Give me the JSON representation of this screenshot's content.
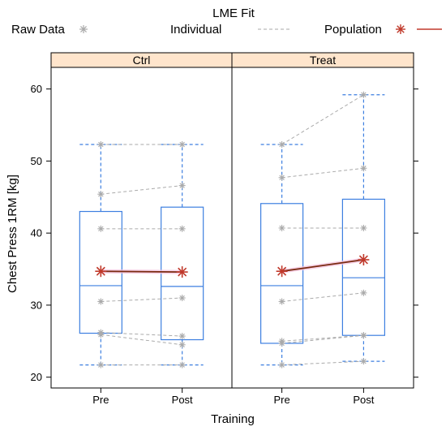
{
  "chart_data": {
    "type": "boxplot",
    "legend": {
      "title": "LME Fit",
      "placement": "top",
      "entries": [
        {
          "label": "Raw Data",
          "marker": "asterisk",
          "color": "#aaaaaa"
        },
        {
          "label": "Individual",
          "line": "dashed",
          "color": "#aaaaaa"
        },
        {
          "label": "Population",
          "marker": "asterisk",
          "line": "solid",
          "color": "#c0392b"
        }
      ]
    },
    "xlabel": "Training",
    "ylabel": "Chest Press 1RM [kg]",
    "categories": [
      "Pre",
      "Post"
    ],
    "ylim": [
      18.5,
      63
    ],
    "yticks": [
      20,
      30,
      40,
      50,
      60
    ],
    "colors": {
      "box": "#3d7fe0",
      "raw": "#aaaaaa",
      "individual": "#aaaaaa",
      "population": "#c0392b",
      "strip": "#ffe5cc"
    },
    "panels": [
      {
        "name": "Ctrl",
        "boxes": [
          {
            "category": "Pre",
            "whisker_low": 21.7,
            "q1": 26.1,
            "median": 32.7,
            "q3": 43.0,
            "whisker_high": 52.3
          },
          {
            "category": "Post",
            "whisker_low": 21.7,
            "q1": 25.2,
            "median": 32.6,
            "q3": 43.6,
            "whisker_high": 52.3
          }
        ],
        "individuals": [
          [
            52.3,
            52.3
          ],
          [
            45.4,
            46.6
          ],
          [
            40.6,
            40.6
          ],
          [
            30.5,
            31.0
          ],
          [
            26.2,
            25.7
          ],
          [
            25.9,
            24.5
          ],
          [
            21.7,
            21.7
          ]
        ],
        "population": [
          34.7,
          34.6
        ]
      },
      {
        "name": "Treat",
        "boxes": [
          {
            "category": "Pre",
            "whisker_low": 21.7,
            "q1": 24.7,
            "median": 32.7,
            "q3": 44.1,
            "whisker_high": 52.3
          },
          {
            "category": "Post",
            "whisker_low": 22.2,
            "q1": 25.8,
            "median": 33.8,
            "q3": 44.7,
            "whisker_high": 59.2
          }
        ],
        "individuals": [
          [
            52.3,
            59.2
          ],
          [
            47.7,
            49.0
          ],
          [
            40.7,
            40.7
          ],
          [
            30.5,
            31.7
          ],
          [
            25.0,
            25.8
          ],
          [
            24.7,
            25.8
          ],
          [
            21.7,
            22.2
          ]
        ],
        "population": [
          34.7,
          36.3
        ]
      }
    ]
  }
}
